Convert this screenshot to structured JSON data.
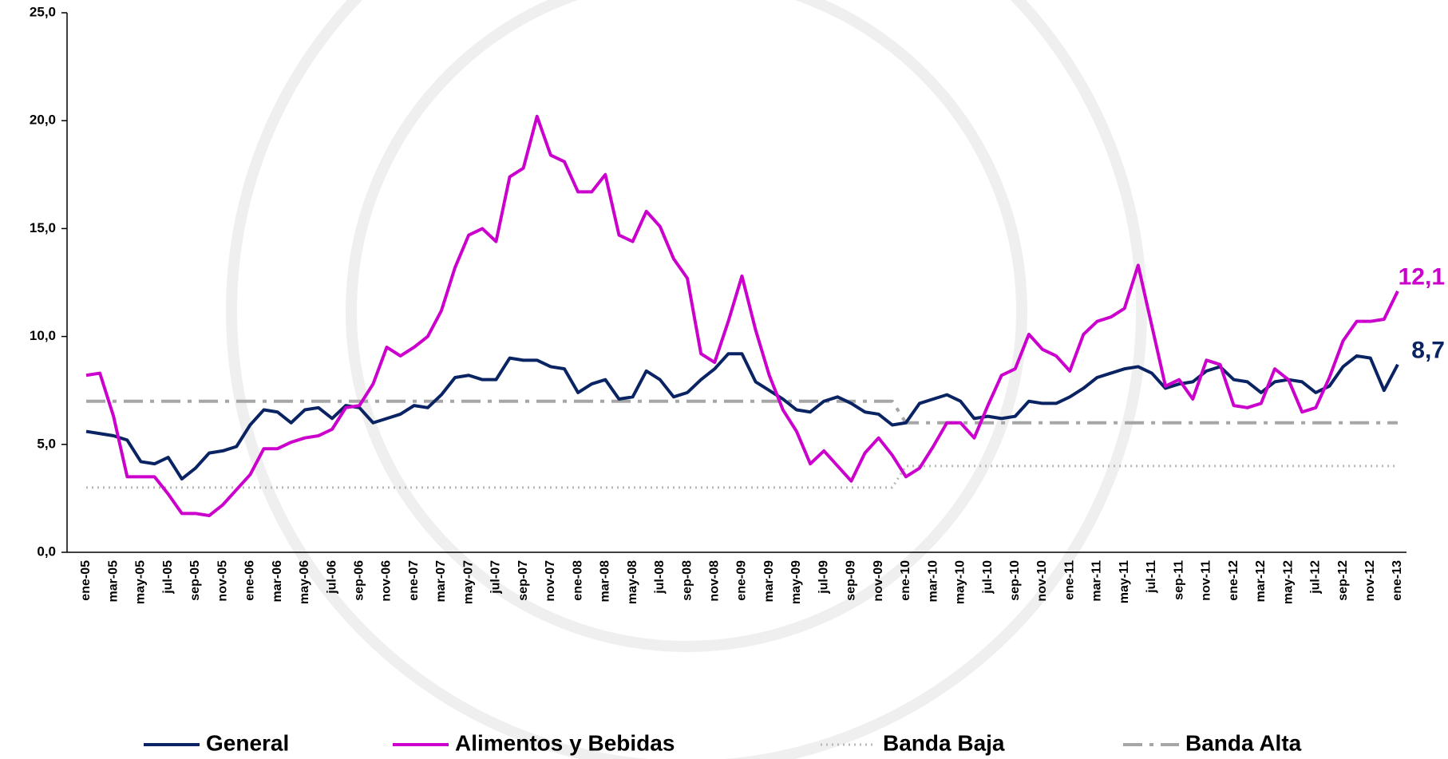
{
  "chart_data": {
    "type": "line",
    "categories": [
      "ene-05",
      null,
      "mar-05",
      null,
      "may-05",
      null,
      "jul-05",
      null,
      "sep-05",
      null,
      "nov-05",
      null,
      "ene-06",
      null,
      "mar-06",
      null,
      "may-06",
      null,
      "jul-06",
      null,
      "sep-06",
      null,
      "nov-06",
      null,
      "ene-07",
      null,
      "mar-07",
      null,
      "may-07",
      null,
      "jul-07",
      null,
      "sep-07",
      null,
      "nov-07",
      null,
      "ene-08",
      null,
      "mar-08",
      null,
      "may-08",
      null,
      "jul-08",
      null,
      "sep-08",
      null,
      "nov-08",
      null,
      "ene-09",
      null,
      "mar-09",
      null,
      "may-09",
      null,
      "jul-09",
      null,
      "sep-09",
      null,
      "nov-09",
      null,
      "ene-10",
      null,
      "mar-10",
      null,
      "may-10",
      null,
      "jul-10",
      null,
      "sep-10",
      null,
      "nov-10",
      null,
      "ene-11",
      null,
      "mar-11",
      null,
      "may-11",
      null,
      "jul-11",
      null,
      "sep-11",
      null,
      "nov-11",
      null,
      "ene-12",
      null,
      "mar-12",
      null,
      "may-12",
      null,
      "jul-12",
      null,
      "sep-12",
      null,
      "nov-12",
      null,
      "ene-13"
    ],
    "series": [
      {
        "name": "General",
        "color": "#0a2463",
        "line_style": "solid",
        "values": [
          5.6,
          5.5,
          5.4,
          5.2,
          4.2,
          4.1,
          4.4,
          3.4,
          3.9,
          4.6,
          4.7,
          4.9,
          5.9,
          6.6,
          6.5,
          6.0,
          6.6,
          6.7,
          6.2,
          6.8,
          6.7,
          6.0,
          6.2,
          6.4,
          6.8,
          6.7,
          7.3,
          8.1,
          8.2,
          8.0,
          8.0,
          9.0,
          8.9,
          8.9,
          8.6,
          8.5,
          7.4,
          7.8,
          8.0,
          7.1,
          7.2,
          8.4,
          8.0,
          7.2,
          7.4,
          8.0,
          8.5,
          9.2,
          9.2,
          7.9,
          7.5,
          7.1,
          6.6,
          6.5,
          7.0,
          7.2,
          6.9,
          6.5,
          6.4,
          5.9,
          6.0,
          6.9,
          7.1,
          7.3,
          7.0,
          6.2,
          6.3,
          6.2,
          6.3,
          7.0,
          6.9,
          6.9,
          7.2,
          7.6,
          8.1,
          8.3,
          8.5,
          8.6,
          8.3,
          7.6,
          7.8,
          7.9,
          8.4,
          8.6,
          8.0,
          7.9,
          7.4,
          7.9,
          8.0,
          7.9,
          7.4,
          7.7,
          8.6,
          9.1,
          9.0,
          7.5,
          8.7
        ],
        "value_labels": [
          null,
          null,
          null,
          null,
          null,
          null,
          null,
          null,
          null,
          null,
          null,
          null,
          null,
          null,
          null,
          null,
          null,
          null,
          null,
          null,
          null,
          null,
          null,
          null,
          null,
          null,
          null,
          null,
          null,
          null,
          null,
          null,
          null,
          null,
          null,
          null,
          null,
          null,
          null,
          null,
          null,
          null,
          null,
          null,
          null,
          null,
          null,
          null,
          null,
          null,
          null,
          null,
          null,
          null,
          null,
          null,
          null,
          null,
          null,
          null,
          null,
          null,
          null,
          null,
          null,
          null,
          null,
          null,
          null,
          null,
          null,
          null,
          null,
          null,
          null,
          null,
          null,
          null,
          null,
          null,
          null,
          null,
          null,
          null,
          null,
          null,
          null,
          null,
          null,
          null,
          null,
          null,
          null,
          null,
          null,
          null,
          "8,7"
        ]
      },
      {
        "name": "Alimentos y Bebidas",
        "color": "#cc00cc",
        "line_style": "solid",
        "values": [
          8.2,
          8.3,
          6.3,
          3.5,
          3.5,
          3.5,
          2.7,
          1.8,
          1.8,
          1.7,
          2.2,
          2.9,
          3.6,
          4.8,
          4.8,
          5.1,
          5.3,
          5.4,
          5.7,
          6.7,
          6.8,
          7.8,
          9.5,
          9.1,
          9.5,
          10.0,
          11.2,
          13.2,
          14.7,
          15.0,
          14.4,
          17.4,
          17.8,
          20.2,
          18.4,
          18.1,
          16.7,
          16.7,
          17.5,
          14.7,
          14.4,
          15.8,
          15.1,
          13.6,
          12.7,
          9.2,
          8.8,
          10.7,
          12.8,
          10.3,
          8.2,
          6.6,
          5.6,
          4.1,
          4.7,
          4.0,
          3.3,
          4.6,
          5.3,
          4.5,
          3.5,
          3.9,
          4.9,
          6.0,
          6.0,
          5.3,
          6.8,
          8.2,
          8.5,
          10.1,
          9.4,
          9.1,
          8.4,
          10.1,
          10.7,
          10.9,
          11.3,
          13.3,
          10.5,
          7.7,
          8.0,
          7.1,
          8.9,
          8.7,
          6.8,
          6.7,
          6.9,
          8.5,
          8.0,
          6.5,
          6.7,
          8.1,
          9.8,
          10.7,
          10.7,
          10.8,
          12.1
        ],
        "value_labels": [
          null,
          null,
          null,
          null,
          null,
          null,
          null,
          null,
          null,
          null,
          null,
          null,
          null,
          null,
          null,
          null,
          null,
          null,
          null,
          null,
          null,
          null,
          null,
          null,
          null,
          null,
          null,
          null,
          null,
          null,
          null,
          null,
          null,
          null,
          null,
          null,
          null,
          null,
          null,
          null,
          null,
          null,
          null,
          null,
          null,
          null,
          null,
          null,
          null,
          null,
          null,
          null,
          null,
          null,
          null,
          null,
          null,
          null,
          null,
          null,
          null,
          null,
          null,
          null,
          null,
          null,
          null,
          null,
          null,
          null,
          null,
          null,
          null,
          null,
          null,
          null,
          null,
          null,
          null,
          null,
          null,
          null,
          null,
          null,
          null,
          null,
          null,
          null,
          null,
          null,
          null,
          null,
          null,
          null,
          null,
          null,
          "12,1"
        ]
      },
      {
        "name": "Banda Baja",
        "color": "#b8b8b8",
        "line_style": "dotted",
        "values": [
          3,
          3,
          3,
          3,
          3,
          3,
          3,
          3,
          3,
          3,
          3,
          3,
          3,
          3,
          3,
          3,
          3,
          3,
          3,
          3,
          3,
          3,
          3,
          3,
          3,
          3,
          3,
          3,
          3,
          3,
          3,
          3,
          3,
          3,
          3,
          3,
          3,
          3,
          3,
          3,
          3,
          3,
          3,
          3,
          3,
          3,
          3,
          3,
          3,
          3,
          3,
          3,
          3,
          3,
          3,
          3,
          3,
          3,
          3,
          3,
          4,
          4,
          4,
          4,
          4,
          4,
          4,
          4,
          4,
          4,
          4,
          4,
          4,
          4,
          4,
          4,
          4,
          4,
          4,
          4,
          4,
          4,
          4,
          4,
          4,
          4,
          4,
          4,
          4,
          4,
          4,
          4,
          4,
          4,
          4,
          4,
          4
        ]
      },
      {
        "name": "Banda Alta",
        "color": "#a6a6a6",
        "line_style": "dashdot",
        "values": [
          7,
          7,
          7,
          7,
          7,
          7,
          7,
          7,
          7,
          7,
          7,
          7,
          7,
          7,
          7,
          7,
          7,
          7,
          7,
          7,
          7,
          7,
          7,
          7,
          7,
          7,
          7,
          7,
          7,
          7,
          7,
          7,
          7,
          7,
          7,
          7,
          7,
          7,
          7,
          7,
          7,
          7,
          7,
          7,
          7,
          7,
          7,
          7,
          7,
          7,
          7,
          7,
          7,
          7,
          7,
          7,
          7,
          7,
          7,
          7,
          6,
          6,
          6,
          6,
          6,
          6,
          6,
          6,
          6,
          6,
          6,
          6,
          6,
          6,
          6,
          6,
          6,
          6,
          6,
          6,
          6,
          6,
          6,
          6,
          6,
          6,
          6,
          6,
          6,
          6,
          6,
          6,
          6,
          6,
          6,
          6,
          6
        ]
      }
    ],
    "ylim": [
      0,
      25
    ],
    "yticks": [
      {
        "value": 0,
        "label": "0,0"
      },
      {
        "value": 5,
        "label": "5,0"
      },
      {
        "value": 10,
        "label": "10,0"
      },
      {
        "value": 15,
        "label": "15,0"
      },
      {
        "value": 20,
        "label": "20,0"
      },
      {
        "value": 25,
        "label": "25,0"
      }
    ],
    "grid": false,
    "legend": "bottom"
  }
}
